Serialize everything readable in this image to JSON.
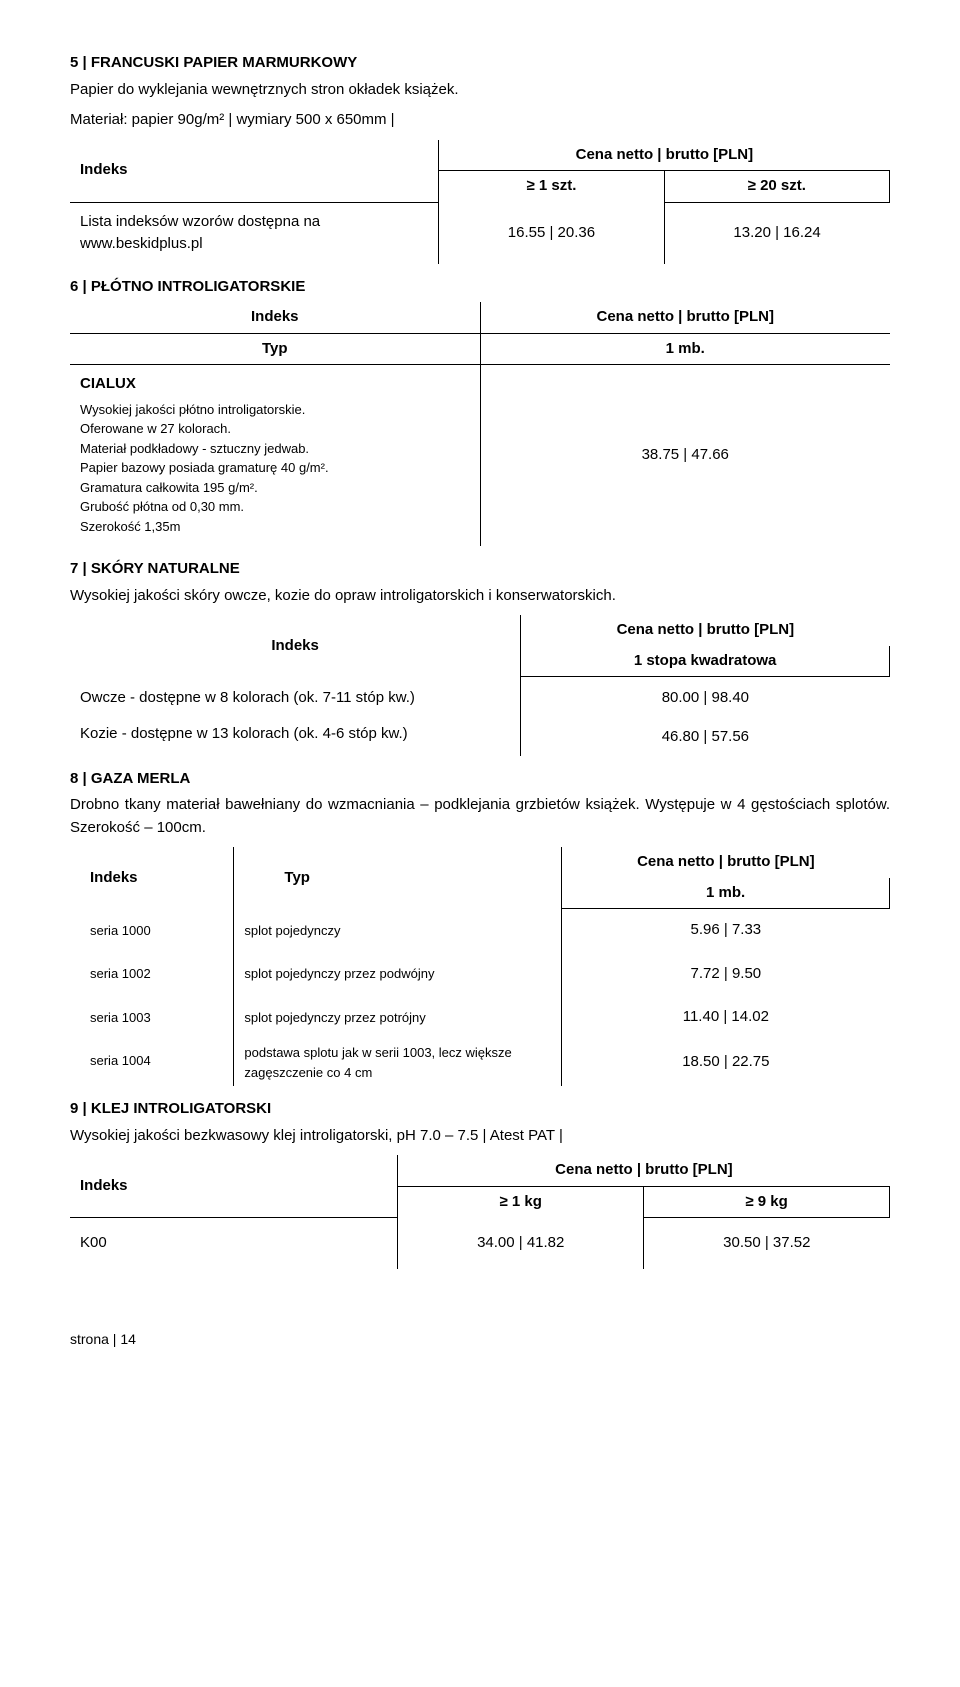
{
  "s5": {
    "title": "5 | FRANCUSKI PAPIER MARMURKOWY",
    "desc1": "Papier do wyklejania wewnętrznych stron okładek książek.",
    "desc2": "Materiał: papier 90g/m² | wymiary 500 x 650mm |",
    "h_indeks": "Indeks",
    "h_price": "Cena netto | brutto [PLN]",
    "h_q1": "≥ 1 szt.",
    "h_q2": "≥ 20 szt.",
    "row_label": "Lista indeksów wzorów dostępna na www.beskidplus.pl",
    "p1": "16.55 | 20.36",
    "p2": "13.20 | 16.24"
  },
  "s6": {
    "title": "6 | PŁÓTNO INTROLIGATORSKIE",
    "h_indeks": "Indeks",
    "h_price": "Cena netto | brutto [PLN]",
    "h_typ": "Typ",
    "h_unit": "1 mb.",
    "cialux": "CIALUX",
    "d1": "Wysokiej jakości płótno introligatorskie.",
    "d2": "Oferowane w 27 kolorach.",
    "d3": "Materiał podkładowy - sztuczny jedwab.",
    "d4": "Papier bazowy posiada gramaturę 40 g/m².",
    "d5": "Gramatura całkowita 195 g/m².",
    "d6": "Grubość płótna od 0,30 mm.",
    "d7": "Szerokość 1,35m",
    "price": "38.75 | 47.66"
  },
  "s7": {
    "title": "7 | SKÓRY NATURALNE",
    "desc": "Wysokiej jakości skóry owcze, kozie do opraw introligatorskich i konserwatorskich.",
    "h_indeks": "Indeks",
    "h_price": "Cena netto | brutto [PLN]",
    "h_unit": "1 stopa kwadratowa",
    "r1_label": "Owcze - dostępne w 8 kolorach (ok. 7-11 stóp kw.)",
    "r1_price": "80.00 | 98.40",
    "r2_label": "Kozie - dostępne w 13 kolorach (ok. 4-6 stóp kw.)",
    "r2_price": "46.80 | 57.56"
  },
  "s8": {
    "title": "8 | GAZA MERLA",
    "desc": "Drobno tkany materiał bawełniany do wzmacniania – podklejania grzbietów książek. Występuje w 4 gęstościach splotów. Szerokość – 100cm.",
    "h_indeks": "Indeks",
    "h_typ": "Typ",
    "h_price": "Cena netto | brutto [PLN]",
    "h_unit": "1 mb.",
    "rows": [
      {
        "idx": "seria 1000",
        "typ": "splot pojedynczy",
        "price": "5.96 | 7.33"
      },
      {
        "idx": "seria 1002",
        "typ": "splot pojedynczy przez podwójny",
        "price": "7.72 | 9.50"
      },
      {
        "idx": "seria 1003",
        "typ": "splot pojedynczy przez potrójny",
        "price": "11.40 | 14.02"
      },
      {
        "idx": "seria 1004",
        "typ": "podstawa splotu jak w serii 1003, lecz większe zagęszczenie co 4 cm",
        "price": "18.50 | 22.75"
      }
    ]
  },
  "s9": {
    "title": "9 | KLEJ INTROLIGATORSKI",
    "desc": "Wysokiej jakości bezkwasowy klej introligatorski, pH 7.0 – 7.5 | Atest PAT |",
    "h_indeks": "Indeks",
    "h_price": "Cena netto | brutto [PLN]",
    "h_q1": "≥ 1 kg",
    "h_q2": "≥ 9 kg",
    "row_idx": "K00",
    "p1": "34.00 | 41.82",
    "p2": "30.50 | 37.52"
  },
  "footer": "strona | 14"
}
